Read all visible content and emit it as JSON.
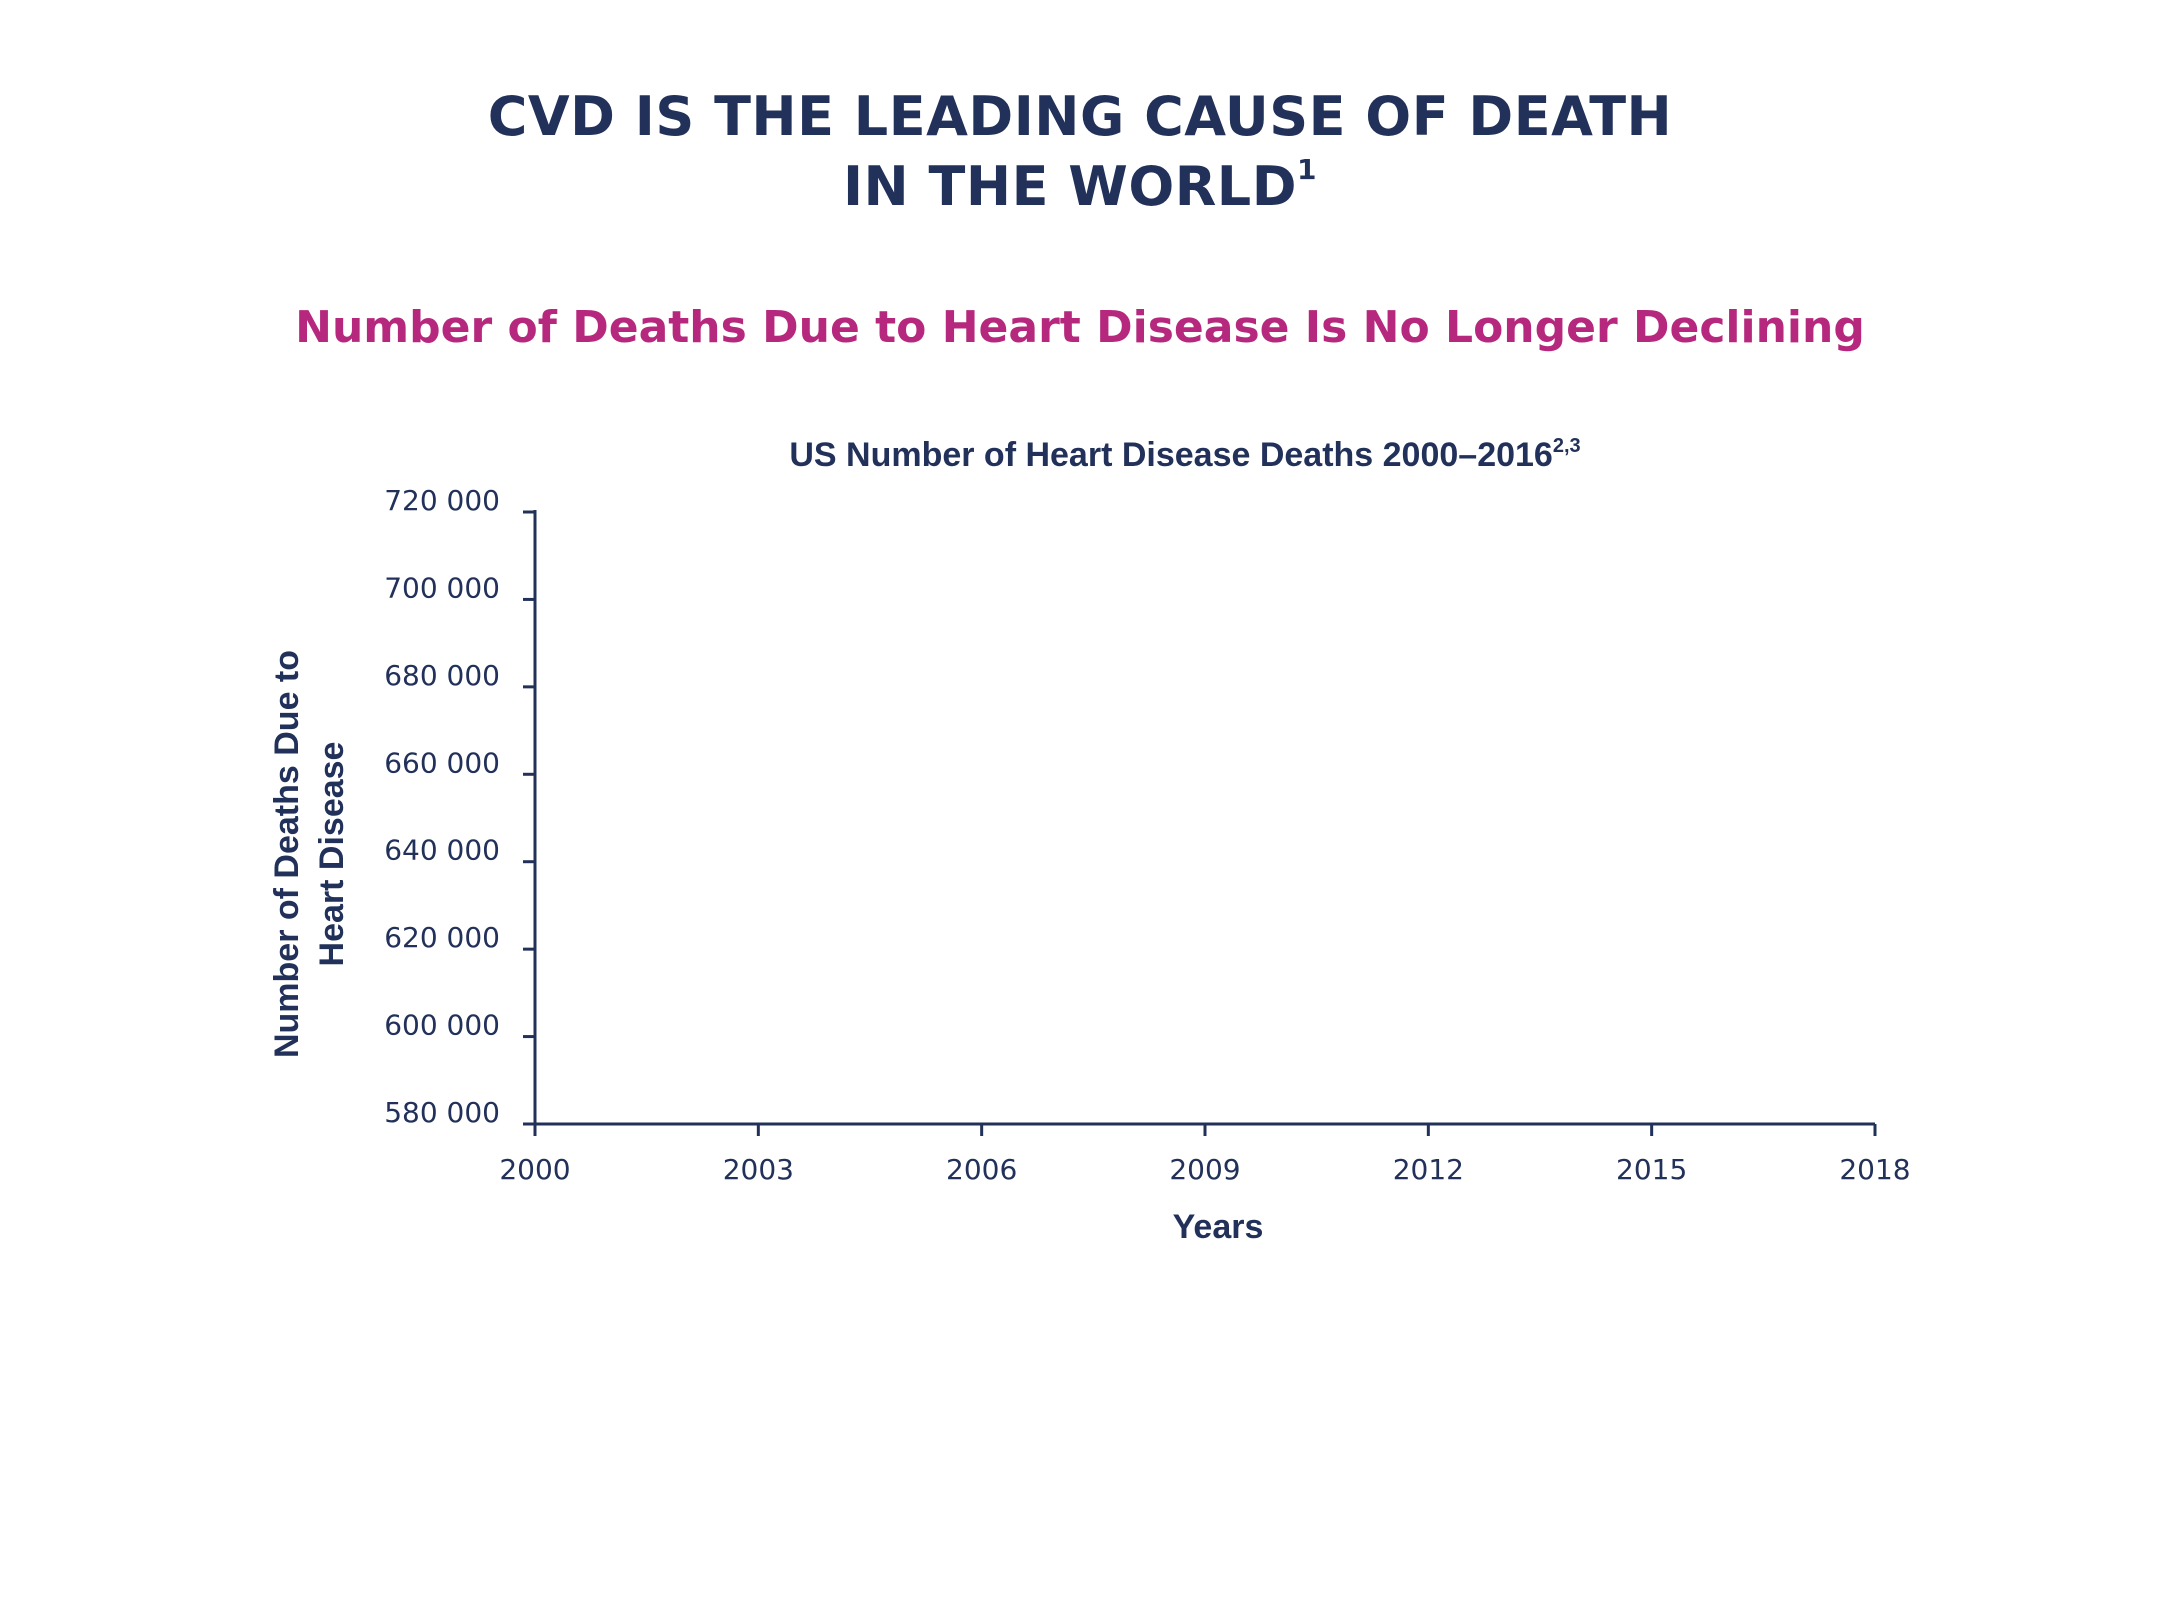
{
  "page": {
    "headline_line1": "CVD IS THE LEADING CAUSE OF DEATH",
    "headline_line2": "IN THE WORLD",
    "headline_sup": "1",
    "subhead": "Number of Deaths Due to Heart Disease Is No Longer Declining"
  },
  "chart_data": {
    "type": "line",
    "title": "US Number of Heart Disease Deaths 2000–2016",
    "title_sup": "2,3",
    "xlabel": "Years",
    "ylabel_lines": [
      "Number of Deaths Due to",
      "Heart Disease"
    ],
    "xlim": [
      2000,
      2018
    ],
    "ylim": [
      580000,
      720000
    ],
    "x_ticks": [
      2000,
      2003,
      2006,
      2009,
      2012,
      2015,
      2018
    ],
    "x_tick_labels": [
      "2000",
      "2003",
      "2006",
      "2009",
      "2012",
      "2015",
      "2018"
    ],
    "y_ticks": [
      580000,
      600000,
      620000,
      640000,
      660000,
      680000,
      700000,
      720000
    ],
    "y_tick_labels": [
      "580 000",
      "600 000",
      "620 000",
      "640 000",
      "660 000",
      "680 000",
      "700 000",
      "720 000"
    ],
    "grid": false,
    "series": [],
    "colors": {
      "axis": "#22315a",
      "text": "#22315a",
      "accent": "#b5287d"
    }
  }
}
